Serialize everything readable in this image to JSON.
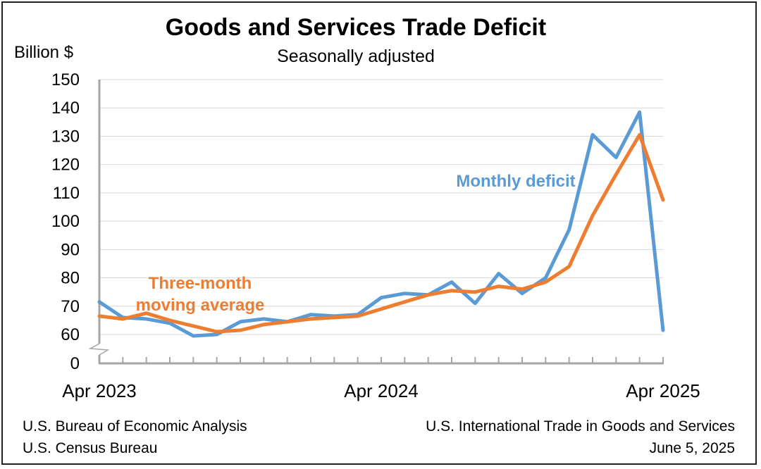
{
  "chart_data": {
    "type": "line",
    "title": "Goods and Services Trade Deficit",
    "subtitle": "Seasonally adjusted",
    "ylabel": "Billion $",
    "ylim": [
      0,
      150
    ],
    "axis_break": [
      0,
      57
    ],
    "yticks": [
      0,
      60,
      70,
      80,
      90,
      100,
      110,
      120,
      130,
      140,
      150
    ],
    "x_tick_labels": [
      {
        "index": 0,
        "label": "Apr 2023"
      },
      {
        "index": 12,
        "label": "Apr 2024"
      },
      {
        "index": 24,
        "label": "Apr 2025"
      }
    ],
    "x": [
      "Apr 2023",
      "May 2023",
      "Jun 2023",
      "Jul 2023",
      "Aug 2023",
      "Sep 2023",
      "Oct 2023",
      "Nov 2023",
      "Dec 2023",
      "Jan 2024",
      "Feb 2024",
      "Mar 2024",
      "Apr 2024",
      "May 2024",
      "Jun 2024",
      "Jul 2024",
      "Aug 2024",
      "Sep 2024",
      "Oct 2024",
      "Nov 2024",
      "Dec 2024",
      "Jan 2025",
      "Feb 2025",
      "Mar 2025",
      "Apr 2025"
    ],
    "series": [
      {
        "name": "Monthly deficit",
        "label": "Monthly deficit",
        "color": "#5b9bd5",
        "values": [
          71.5,
          66.0,
          65.5,
          64.0,
          59.5,
          60.0,
          64.5,
          65.5,
          64.5,
          67.0,
          66.5,
          67.0,
          73.0,
          74.5,
          74.0,
          78.5,
          71.0,
          81.5,
          74.5,
          80.0,
          97.0,
          130.5,
          122.5,
          138.5,
          61.5
        ]
      },
      {
        "name": "Three-month moving average",
        "label_lines": [
          "Three-month",
          "moving average"
        ],
        "color": "#ed7d31",
        "values": [
          66.5,
          65.5,
          67.5,
          65.0,
          63.0,
          61.0,
          61.5,
          63.5,
          64.5,
          65.5,
          66.0,
          66.5,
          69.0,
          71.5,
          74.0,
          75.5,
          75.0,
          77.0,
          76.0,
          78.5,
          84.0,
          102.0,
          116.5,
          130.5,
          107.5
        ]
      }
    ]
  },
  "footer": {
    "left_line1": "U.S. Bureau of Economic Analysis",
    "left_line2": "U.S. Census Bureau",
    "right_line1": "U.S. International Trade in Goods and Services",
    "right_line2": "June 5, 2025"
  }
}
